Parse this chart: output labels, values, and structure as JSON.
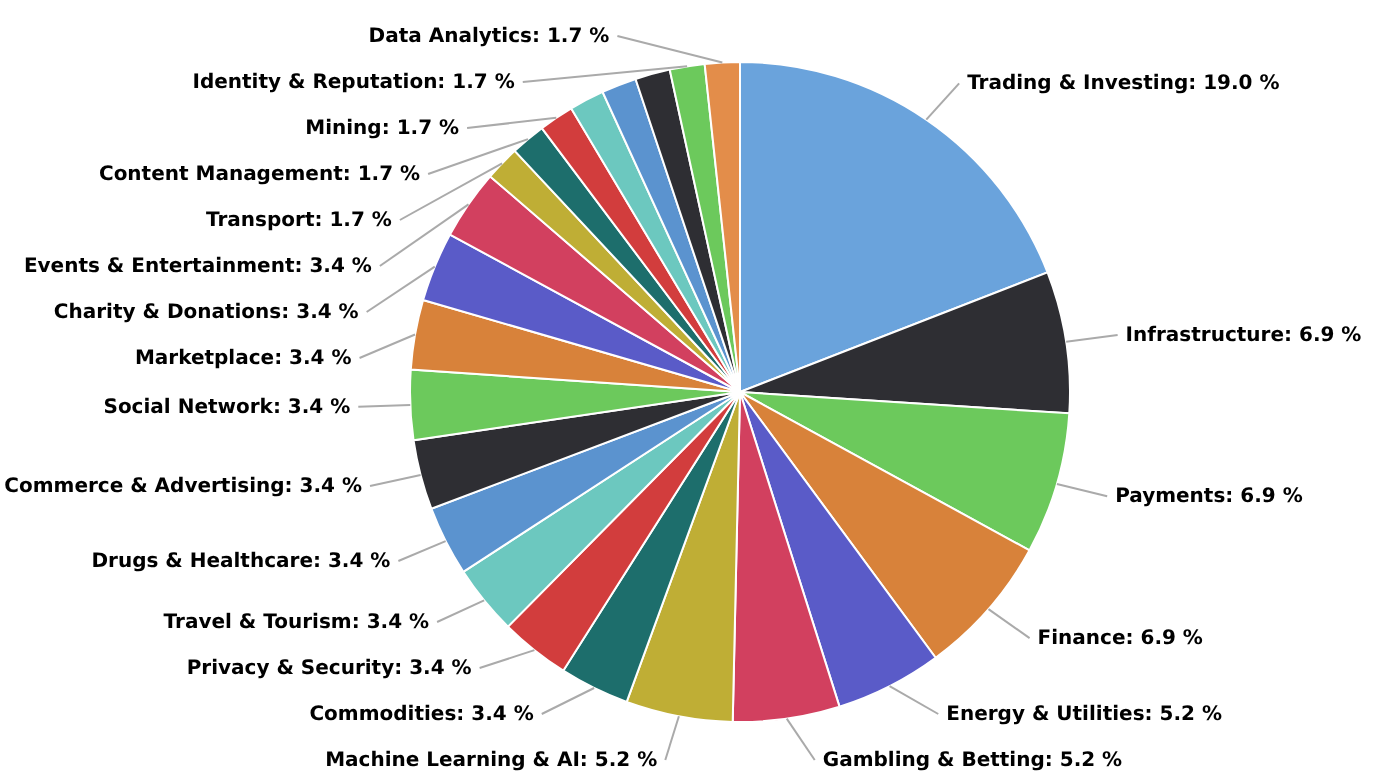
{
  "chart_data": {
    "type": "pie",
    "data_labels": true,
    "categories": [
      "Trading & Investing",
      "Infrastructure",
      "Payments",
      "Finance",
      "Energy & Utilities",
      "Gambling & Betting",
      "Machine Learning & AI",
      "Commodities",
      "Privacy & Security",
      "Travel & Tourism",
      "Drugs & Healthcare",
      "Commerce & Advertising",
      "Social Network",
      "Marketplace",
      "Charity & Donations",
      "Events & Entertainment",
      "Transport",
      "Content Management",
      "Mining",
      null,
      null,
      null,
      "Identity & Reputation",
      "Data Analytics"
    ],
    "values": [
      19.0,
      6.9,
      6.9,
      6.9,
      5.2,
      5.2,
      5.2,
      3.4,
      3.4,
      3.4,
      3.4,
      3.4,
      3.4,
      3.4,
      3.4,
      3.4,
      1.7,
      1.7,
      1.7,
      1.7,
      1.7,
      1.7,
      1.7,
      1.7
    ],
    "value_labels": [
      "19.0 %",
      "6.9 %",
      "6.9 %",
      "6.9 %",
      "5.2 %",
      "5.2 %",
      "5.2 %",
      "3.4 %",
      "3.4 %",
      "3.4 %",
      "3.4 %",
      "3.4 %",
      "3.4 %",
      "3.4 %",
      "3.4 %",
      "3.4 %",
      "1.7 %",
      "1.7 %",
      "1.7 %",
      null,
      null,
      null,
      "1.7 %",
      "1.7 %"
    ],
    "colors": [
      "#6aa3dc",
      "#2e2e33",
      "#6cc95c",
      "#d8823a",
      "#5a5bc8",
      "#d2405f",
      "#bfae35",
      "#1d6e6c",
      "#d23d3d",
      "#6cc8bf",
      "#5b93cf",
      "#2e2e33",
      "#6cc95c",
      "#d8823a",
      "#5a5bc8",
      "#d2405f",
      "#bfae35",
      "#1d6e6c",
      "#d23d3d",
      "#6cc8bf",
      "#5b93cf",
      "#2e2e33",
      "#6cc95c",
      "#e38d4a"
    ]
  }
}
